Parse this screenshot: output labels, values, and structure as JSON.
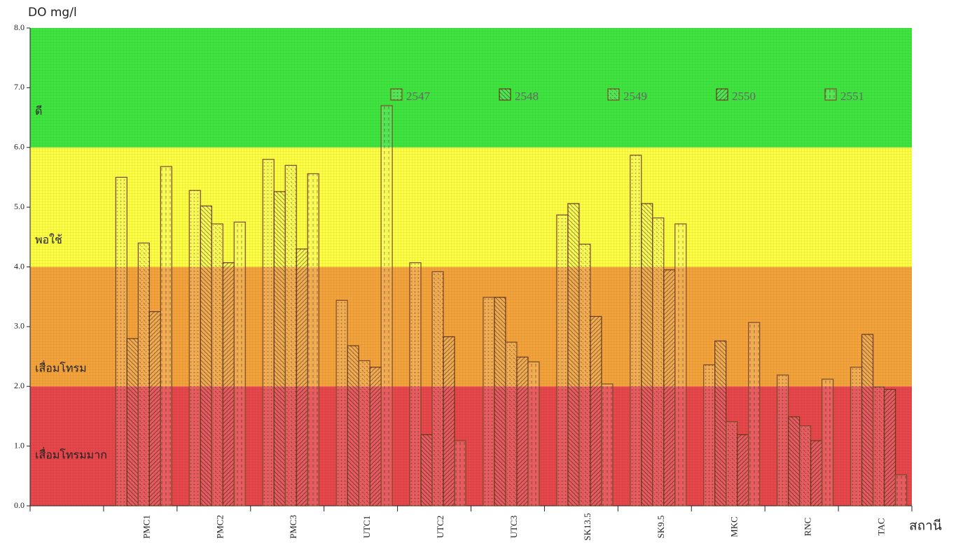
{
  "chart_data": {
    "type": "bar",
    "y_label": "DO mg/l",
    "x_label": "สถานี",
    "categories": [
      null,
      "PMC1",
      "PMC2",
      "PMC3",
      "UTC1",
      "UTC2",
      "UTC3",
      "SK13.5",
      "SK9.5",
      "MKC",
      "RNC",
      "TAC"
    ],
    "series": [
      {
        "name": "2547",
        "color": "#7a4a2a",
        "values": [
          null,
          5.5,
          5.28,
          5.8,
          3.44,
          4.07,
          3.49,
          4.87,
          5.87,
          2.36,
          2.19,
          2.32
        ]
      },
      {
        "name": "2548",
        "color": "#6a3a1a",
        "values": [
          null,
          2.8,
          5.02,
          5.26,
          2.68,
          1.19,
          3.49,
          5.06,
          5.06,
          2.76,
          1.49,
          2.87
        ]
      },
      {
        "name": "2549",
        "color": "#7a4a2a",
        "values": [
          null,
          4.4,
          4.72,
          5.7,
          2.43,
          3.92,
          2.74,
          4.38,
          4.82,
          1.41,
          1.34,
          1.99
        ]
      },
      {
        "name": "2550",
        "color": "#6a3a1a",
        "values": [
          null,
          3.25,
          4.07,
          4.3,
          2.32,
          2.83,
          2.49,
          3.17,
          3.95,
          1.19,
          1.09,
          1.95
        ]
      },
      {
        "name": "2551",
        "color": "#7a4a2a",
        "values": [
          null,
          5.68,
          4.75,
          5.56,
          6.7,
          1.09,
          2.41,
          2.04,
          4.72,
          3.07,
          2.12,
          0.52
        ]
      }
    ],
    "bands": [
      {
        "from": 0,
        "to": 2,
        "label": "เสื่อมโทรมมาก",
        "color": "#e8484c"
      },
      {
        "from": 2,
        "to": 4,
        "label": "เสื่อมโทรม",
        "color": "#f5a43c"
      },
      {
        "from": 4,
        "to": 6,
        "label": "พอใช้",
        "color": "#ffff44"
      },
      {
        "from": 6,
        "to": 8,
        "label": "ดี",
        "color": "#40e640"
      }
    ],
    "ylim": [
      0,
      8
    ],
    "yticks": [
      {
        "value": 0,
        "label": "0.0"
      },
      {
        "value": 1,
        "label": "1.0"
      },
      {
        "value": 2,
        "label": "2.0"
      },
      {
        "value": 3,
        "label": "3.0"
      },
      {
        "value": 4,
        "label": "4.0"
      },
      {
        "value": 5,
        "label": "5.0"
      },
      {
        "value": 6,
        "label": "6.0"
      },
      {
        "value": 7,
        "label": "7.0"
      },
      {
        "value": 8,
        "label": "8.0"
      }
    ]
  }
}
